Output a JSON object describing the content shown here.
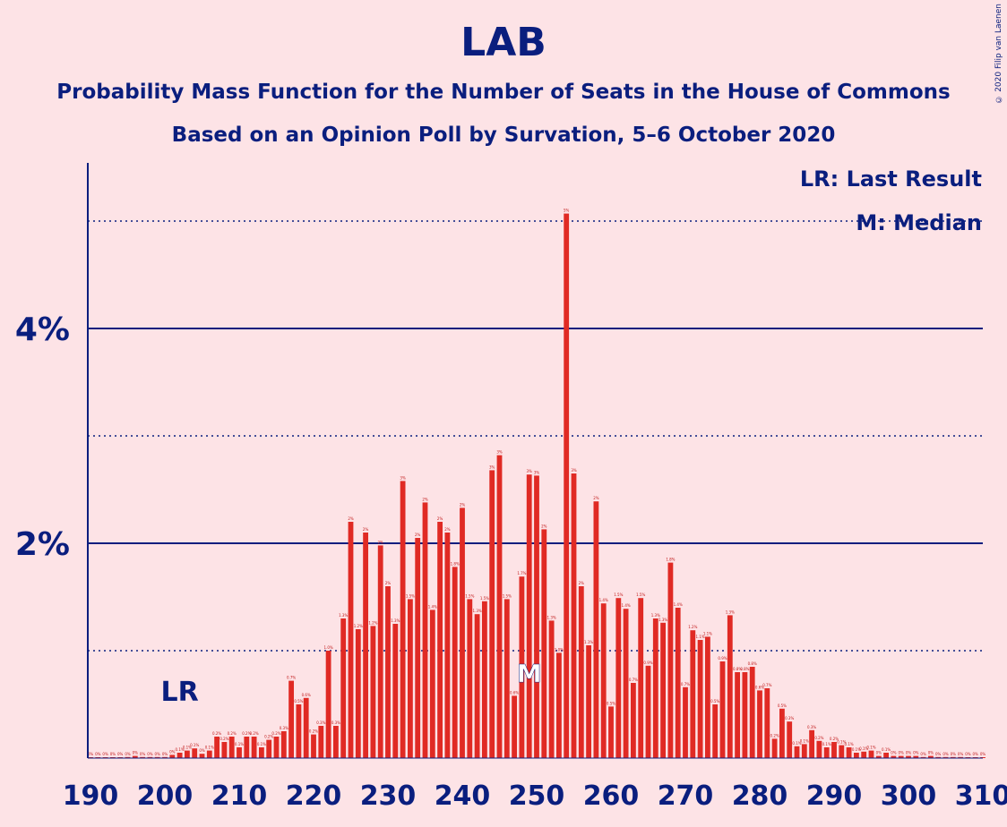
{
  "title": "LAB",
  "subtitle1": "Probability Mass Function for the Number of Seats in the House of Commons",
  "subtitle2": "Based on an Opinion Poll by Survation, 5–6 October 2020",
  "copyright": "© 2020 Filip van Laenen",
  "legend": {
    "lr": "LR: Last Result",
    "m": "M: Median"
  },
  "colors": {
    "bar": "#e02a24",
    "axis": "#0a1e7e",
    "background": "#fde3e6"
  },
  "chart_data": {
    "type": "bar",
    "xlim": [
      190,
      310
    ],
    "ylim": [
      0,
      5.5
    ],
    "x_ticks": [
      "190",
      "200",
      "210",
      "220",
      "230",
      "240",
      "250",
      "260",
      "270",
      "280",
      "290",
      "300",
      "310"
    ],
    "y_ticks": [
      {
        "value": 2,
        "label": "2%"
      },
      {
        "value": 4,
        "label": "4%"
      }
    ],
    "solid_gridlines": [
      2,
      4
    ],
    "dotted_gridlines": [
      1,
      3,
      5
    ],
    "last_result": {
      "seats": 202,
      "label": "LR"
    },
    "median": {
      "seats": 249,
      "label": "M"
    },
    "seats": [
      190,
      191,
      192,
      193,
      194,
      195,
      196,
      197,
      198,
      199,
      200,
      201,
      202,
      203,
      204,
      205,
      206,
      207,
      208,
      209,
      210,
      211,
      212,
      213,
      214,
      215,
      216,
      217,
      218,
      219,
      220,
      221,
      222,
      223,
      224,
      225,
      226,
      227,
      228,
      229,
      230,
      231,
      232,
      233,
      234,
      235,
      236,
      237,
      238,
      239,
      240,
      241,
      242,
      243,
      244,
      245,
      246,
      247,
      248,
      249,
      250,
      251,
      252,
      253,
      254,
      255,
      256,
      257,
      258,
      259,
      260,
      261,
      262,
      263,
      264,
      265,
      266,
      267,
      268,
      269,
      270,
      271,
      272,
      273,
      274,
      275,
      276,
      277,
      278,
      279,
      280,
      281,
      282,
      283,
      284,
      285,
      286,
      287,
      288,
      289,
      290,
      291,
      292,
      293,
      294,
      295,
      296,
      297,
      298,
      299,
      300,
      301,
      302,
      303,
      304,
      305,
      306,
      307,
      308,
      309,
      310
    ],
    "values": [
      0.0,
      0.0,
      0.0,
      0.0,
      0.0,
      0.01,
      0.02,
      0.01,
      0.01,
      0.01,
      0.01,
      0.03,
      0.05,
      0.07,
      0.09,
      0.04,
      0.07,
      0.2,
      0.15,
      0.2,
      0.1,
      0.2,
      0.2,
      0.1,
      0.17,
      0.2,
      0.25,
      0.72,
      0.5,
      0.56,
      0.22,
      0.3,
      1.0,
      0.3,
      1.3,
      2.2,
      1.2,
      2.1,
      1.23,
      1.98,
      1.6,
      1.25,
      2.58,
      1.48,
      2.05,
      2.38,
      1.38,
      2.2,
      2.1,
      1.78,
      2.33,
      1.48,
      1.34,
      1.46,
      2.68,
      2.82,
      1.48,
      0.58,
      1.69,
      2.64,
      2.63,
      2.13,
      1.28,
      0.98,
      5.07,
      2.65,
      1.6,
      1.05,
      2.39,
      1.44,
      0.48,
      1.49,
      1.39,
      0.7,
      1.49,
      0.86,
      1.3,
      1.26,
      1.82,
      1.4,
      0.66,
      1.19,
      1.1,
      1.13,
      0.5,
      0.9,
      1.33,
      0.8,
      0.8,
      0.85,
      0.63,
      0.65,
      0.18,
      0.46,
      0.34,
      0.11,
      0.13,
      0.26,
      0.16,
      0.1,
      0.15,
      0.12,
      0.1,
      0.05,
      0.06,
      0.07,
      0.02,
      0.05,
      0.02,
      0.02,
      0.02,
      0.02,
      0.01,
      0.02,
      0.01,
      0.01,
      0.01,
      0.01,
      0.0,
      0.0,
      0.0
    ],
    "bar_labels": [
      "0%",
      "0%",
      "0%",
      "0%",
      "0%",
      "0%",
      "0%",
      "0%",
      "0%",
      "0%",
      "0%",
      "0%",
      "0.1%",
      "0.1%",
      "0.1%",
      "0%",
      "0.1%",
      "0.2%",
      "0.2%",
      "0.2%",
      "0.1%",
      "0.2%",
      "0.2%",
      "0.1%",
      "0.2%",
      "0.2%",
      "0.3%",
      "0.7%",
      "0.5%",
      "0.6%",
      "0.2%",
      "0.3%",
      "1.0%",
      "0.3%",
      "1.3%",
      "2%",
      "1.2%",
      "2%",
      "1.2%",
      "2%",
      "2%",
      "1.3%",
      "3%",
      "1.5%",
      "2%",
      "2%",
      "1.4%",
      "2%",
      "2%",
      "1.8%",
      "2%",
      "1.5%",
      "1.3%",
      "1.5%",
      "3%",
      "3%",
      "1.5%",
      "0.6%",
      "1.7%",
      "3%",
      "3%",
      "2%",
      "1.3%",
      "1.0%",
      "5%",
      "3%",
      "2%",
      "1.1%",
      "2%",
      "1.4%",
      "0.5%",
      "1.5%",
      "1.4%",
      "0.7%",
      "1.5%",
      "0.9%",
      "1.3%",
      "1.3%",
      "1.8%",
      "1.4%",
      "0.7%",
      "1.2%",
      "1.1%",
      "1.1%",
      "0.5%",
      "0.9%",
      "1.3%",
      "0.8%",
      "0.8%",
      "0.8%",
      "0.6%",
      "0.7%",
      "0.2%",
      "0.5%",
      "0.3%",
      "0.1%",
      "0.1%",
      "0.3%",
      "0.2%",
      "0.1%",
      "0.2%",
      "0.1%",
      "0.1%",
      "0.1%",
      "0.1%",
      "0.1%",
      "0%",
      "0.1%",
      "0%",
      "0%",
      "0%",
      "0%",
      "0%",
      "0%",
      "0%",
      "0%",
      "0%",
      "0%",
      "0%",
      "0%",
      "0%"
    ]
  }
}
